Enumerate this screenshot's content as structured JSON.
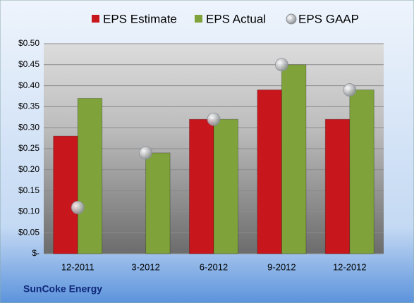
{
  "chart_data": {
    "type": "bar",
    "footer": "SunCoke Energy",
    "categories": [
      "12-2011",
      "3-2012",
      "6-2012",
      "9-2012",
      "12-2012"
    ],
    "series": [
      {
        "name": "EPS Estimate",
        "color": "#c8161d",
        "mark": "bar",
        "values": [
          0.28,
          null,
          0.32,
          0.39,
          0.32
        ]
      },
      {
        "name": "EPS Actual",
        "color": "#7fa33a",
        "mark": "bar",
        "values": [
          0.37,
          0.24,
          0.32,
          0.45,
          0.39
        ]
      },
      {
        "name": "EPS GAAP",
        "color": "#a9adb3",
        "mark": "dot",
        "values": [
          0.11,
          0.24,
          0.32,
          0.45,
          0.39
        ]
      }
    ],
    "ylim": [
      0,
      0.5
    ],
    "yticks": [
      {
        "value": 0,
        "label": "$-"
      },
      {
        "value": 0.05,
        "label": "$0.05"
      },
      {
        "value": 0.1,
        "label": "$0.10"
      },
      {
        "value": 0.15,
        "label": "$0.15"
      },
      {
        "value": 0.2,
        "label": "$0.20"
      },
      {
        "value": 0.25,
        "label": "$0.25"
      },
      {
        "value": 0.3,
        "label": "$0.30"
      },
      {
        "value": 0.35,
        "label": "$0.35"
      },
      {
        "value": 0.4,
        "label": "$0.40"
      },
      {
        "value": 0.45,
        "label": "$0.45"
      },
      {
        "value": 0.5,
        "label": "$0.50"
      }
    ],
    "grid": true
  }
}
